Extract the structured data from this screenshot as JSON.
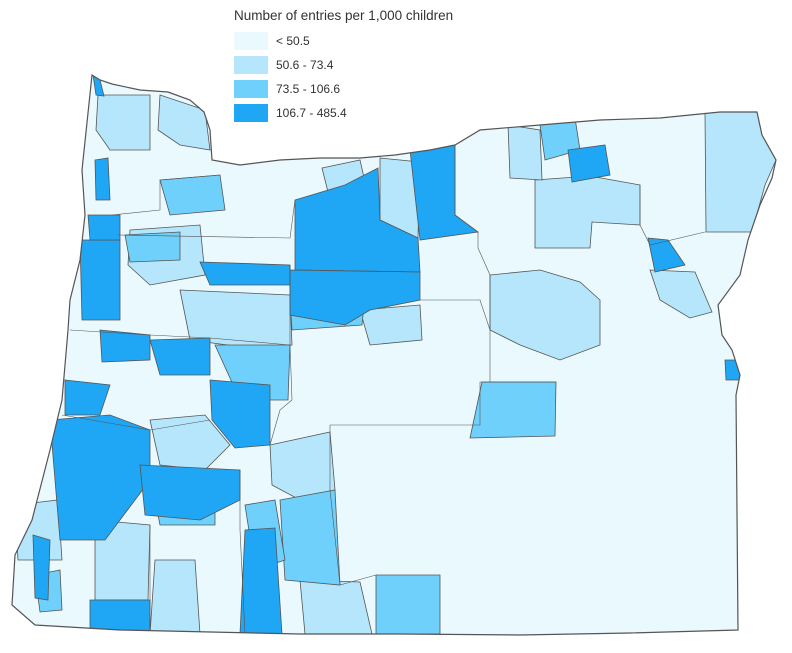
{
  "legend": {
    "title": "Number of entries per 1,000 children",
    "classes": [
      {
        "label": "< 50.5",
        "color": "#eaf9fe"
      },
      {
        "label": "50.6 - 73.4",
        "color": "#b5e6fb"
      },
      {
        "label": "73.5 - 106.6",
        "color": "#6fd0fb"
      },
      {
        "label": "106.7 - 485.4",
        "color": "#1fa6f4"
      }
    ]
  }
}
